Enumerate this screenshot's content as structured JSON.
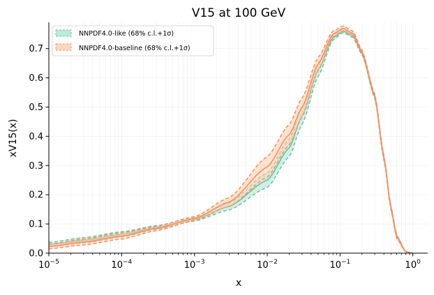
{
  "chart_data": {
    "type": "line",
    "title": "V15 at 100 GeV",
    "xlabel": "x",
    "ylabel": "xV15(x)",
    "xscale": "log",
    "xlim": [
      1e-05,
      1.6
    ],
    "ylim": [
      0,
      0.79
    ],
    "grid": true,
    "legend_position": "top-left",
    "xticks": [
      {
        "value": 1e-05,
        "base": "10",
        "exp": "−5"
      },
      {
        "value": 0.0001,
        "base": "10",
        "exp": "−4"
      },
      {
        "value": 0.001,
        "base": "10",
        "exp": "−3"
      },
      {
        "value": 0.01,
        "base": "10",
        "exp": "−2"
      },
      {
        "value": 0.1,
        "base": "10",
        "exp": "−1"
      },
      {
        "value": 1,
        "base": "10",
        "exp": "0"
      }
    ],
    "yticks": [
      {
        "value": 0.0,
        "label": "0.0"
      },
      {
        "value": 0.1,
        "label": "0.1"
      },
      {
        "value": 0.2,
        "label": "0.2"
      },
      {
        "value": 0.3,
        "label": "0.3"
      },
      {
        "value": 0.4,
        "label": "0.4"
      },
      {
        "value": 0.5,
        "label": "0.5"
      },
      {
        "value": 0.6,
        "label": "0.6"
      },
      {
        "value": 0.7,
        "label": "0.7"
      }
    ],
    "series": [
      {
        "name": "NNPDF4.0-like (68% c.l.+1σ)",
        "color": "#66c2a5",
        "fill": "#b3e2cd",
        "x": [
          1e-05,
          3e-05,
          0.0001,
          0.0003,
          0.001,
          0.003,
          0.01,
          0.02,
          0.03,
          0.05,
          0.08,
          0.11,
          0.15,
          0.2,
          0.3,
          0.4,
          0.5,
          0.6,
          0.8,
          1.0
        ],
        "upper": [
          0.037,
          0.053,
          0.073,
          0.094,
          0.122,
          0.172,
          0.275,
          0.39,
          0.5,
          0.65,
          0.745,
          0.765,
          0.75,
          0.69,
          0.54,
          0.33,
          0.16,
          0.06,
          0.005,
          0.0
        ],
        "lower": [
          0.022,
          0.035,
          0.055,
          0.082,
          0.11,
          0.148,
          0.225,
          0.33,
          0.44,
          0.605,
          0.73,
          0.755,
          0.738,
          0.68,
          0.53,
          0.32,
          0.15,
          0.05,
          0.004,
          0.0
        ]
      },
      {
        "name": "NNPDF4.0-baseline (68% c.l.+1σ)",
        "color": "#fc8d62",
        "fill": "#fdcdac",
        "x": [
          1e-05,
          3e-05,
          0.0001,
          0.0003,
          0.001,
          0.003,
          0.01,
          0.02,
          0.03,
          0.05,
          0.08,
          0.11,
          0.15,
          0.2,
          0.3,
          0.4,
          0.5,
          0.6,
          0.8,
          1.0
        ],
        "upper": [
          0.031,
          0.048,
          0.069,
          0.092,
          0.125,
          0.19,
          0.33,
          0.44,
          0.53,
          0.67,
          0.76,
          0.778,
          0.76,
          0.695,
          0.545,
          0.335,
          0.16,
          0.06,
          0.005,
          0.0
        ],
        "lower": [
          0.015,
          0.028,
          0.048,
          0.077,
          0.112,
          0.16,
          0.26,
          0.37,
          0.465,
          0.625,
          0.74,
          0.76,
          0.745,
          0.685,
          0.535,
          0.325,
          0.15,
          0.05,
          0.004,
          0.0
        ]
      }
    ]
  }
}
